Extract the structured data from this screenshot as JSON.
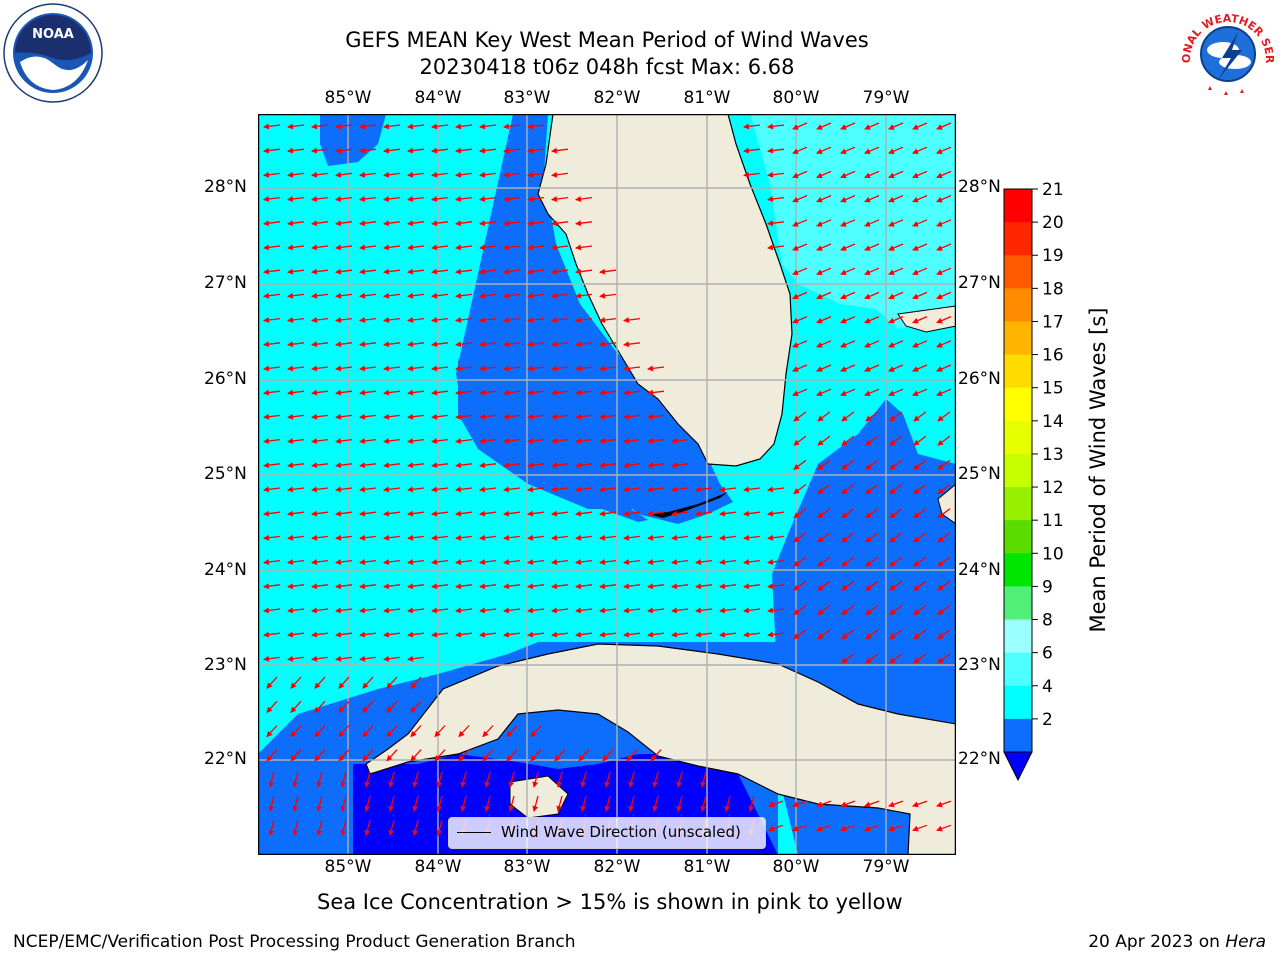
{
  "title": {
    "line1": "GEFS MEAN Key West Mean Period of Wind Waves",
    "line2": "20230418 t06z 048h fcst   Max: 6.68"
  },
  "map": {
    "lon_ticks": [
      "85°W",
      "84°W",
      "83°W",
      "82°W",
      "81°W",
      "80°W",
      "79°W"
    ],
    "lat_ticks": [
      "28°N",
      "27°N",
      "26°N",
      "25°N",
      "24°N",
      "23°N",
      "22°N"
    ],
    "legend_label": "Wind Wave Direction (unscaled)",
    "colors": {
      "land": "#efecdc",
      "arrow": "#ff0000",
      "grid": "#b0b0b0",
      "band_2_4": "#0d6efd",
      "band_4_6": "#00ffff",
      "band_6_8": "#4dffff",
      "band_below_2": "#0000ff"
    }
  },
  "colorbar": {
    "label": "Mean Period of Wind Waves [s]",
    "ticks": [
      "21",
      "20",
      "19",
      "18",
      "17",
      "16",
      "15",
      "14",
      "13",
      "12",
      "11",
      "10",
      "9",
      "8",
      "6",
      "4",
      "2"
    ],
    "colors": [
      "#ff0000",
      "#ff2600",
      "#ff5a00",
      "#ff8c00",
      "#ffb400",
      "#ffdc00",
      "#ffff00",
      "#e6ff00",
      "#c8ff00",
      "#96f000",
      "#5adc00",
      "#00e600",
      "#50f078",
      "#9bffff",
      "#4dffff",
      "#00ffff",
      "#0d6efd"
    ],
    "under_color": "#0000ff"
  },
  "caption": "Sea Ice Concentration > 15% is shown in pink to yellow",
  "footer": {
    "left": "NCEP/EMC/Verification Post Processing Product Generation Branch",
    "right_prefix": "20 Apr 2023 on ",
    "right_italic": "Hera"
  },
  "logos": {
    "noaa_text": "NOAA",
    "nws_text": "NATIONAL WEATHER SERVICE"
  }
}
